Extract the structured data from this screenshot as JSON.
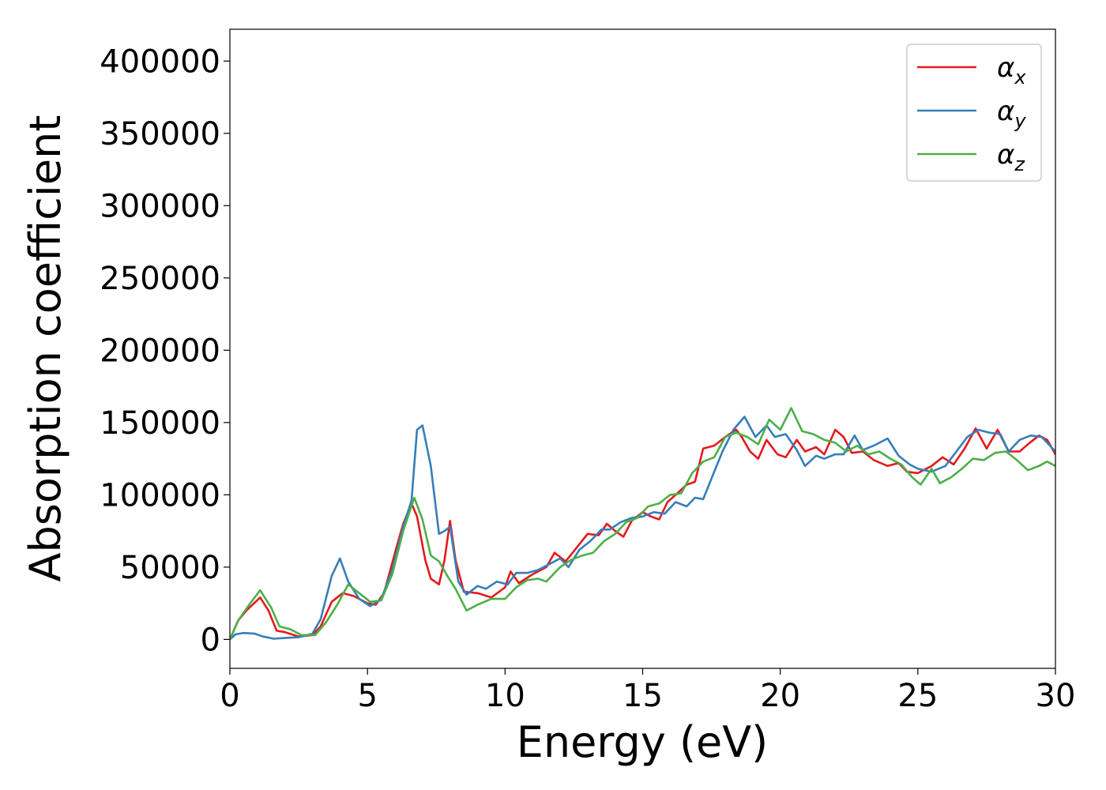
{
  "chart_data": {
    "type": "line",
    "title": "",
    "xlabel": "Energy (eV)",
    "ylabel": "Absorption coefficient",
    "xlim": [
      0,
      30
    ],
    "ylim": [
      -20000,
      422000
    ],
    "xticks": [
      0,
      5,
      10,
      15,
      20,
      25,
      30
    ],
    "yticks": [
      0,
      50000,
      100000,
      150000,
      200000,
      250000,
      300000,
      350000,
      400000
    ],
    "grid": false,
    "legend_position": "top-right",
    "series": [
      {
        "name": "αx",
        "base": "α",
        "sub": "x",
        "color": "#e41a1c",
        "points": [
          [
            0,
            0
          ],
          [
            0.3,
            13000
          ],
          [
            0.6,
            20000
          ],
          [
            1.1,
            29000
          ],
          [
            1.4,
            20000
          ],
          [
            1.7,
            6000
          ],
          [
            2.0,
            5000
          ],
          [
            2.5,
            2000
          ],
          [
            3.0,
            3000
          ],
          [
            3.3,
            9000
          ],
          [
            3.7,
            26000
          ],
          [
            4.1,
            32000
          ],
          [
            4.5,
            30000
          ],
          [
            5.0,
            25000
          ],
          [
            5.3,
            24000
          ],
          [
            5.6,
            32000
          ],
          [
            6.0,
            60000
          ],
          [
            6.3,
            80000
          ],
          [
            6.6,
            94000
          ],
          [
            6.8,
            85000
          ],
          [
            7.1,
            55000
          ],
          [
            7.3,
            42000
          ],
          [
            7.6,
            38000
          ],
          [
            7.8,
            55000
          ],
          [
            8.0,
            82000
          ],
          [
            8.2,
            55000
          ],
          [
            8.5,
            33000
          ],
          [
            9.0,
            32000
          ],
          [
            9.5,
            29000
          ],
          [
            10.0,
            36000
          ],
          [
            10.2,
            47000
          ],
          [
            10.5,
            39000
          ],
          [
            11.0,
            45000
          ],
          [
            11.5,
            50000
          ],
          [
            11.8,
            60000
          ],
          [
            12.2,
            54000
          ],
          [
            12.5,
            61000
          ],
          [
            13.0,
            73000
          ],
          [
            13.4,
            72000
          ],
          [
            13.7,
            80000
          ],
          [
            14.0,
            75000
          ],
          [
            14.3,
            71000
          ],
          [
            14.6,
            82000
          ],
          [
            15.0,
            88000
          ],
          [
            15.3,
            85000
          ],
          [
            15.6,
            83000
          ],
          [
            15.9,
            95000
          ],
          [
            16.2,
            100000
          ],
          [
            16.6,
            107000
          ],
          [
            16.9,
            109000
          ],
          [
            17.2,
            132000
          ],
          [
            17.6,
            134000
          ],
          [
            18.0,
            140000
          ],
          [
            18.4,
            145000
          ],
          [
            18.6,
            140000
          ],
          [
            18.9,
            130000
          ],
          [
            19.2,
            125000
          ],
          [
            19.5,
            138000
          ],
          [
            19.9,
            128000
          ],
          [
            20.2,
            126000
          ],
          [
            20.6,
            138000
          ],
          [
            20.9,
            130000
          ],
          [
            21.3,
            133000
          ],
          [
            21.6,
            128000
          ],
          [
            22.0,
            145000
          ],
          [
            22.3,
            140000
          ],
          [
            22.6,
            129000
          ],
          [
            23.0,
            130000
          ],
          [
            23.4,
            124000
          ],
          [
            23.9,
            120000
          ],
          [
            24.3,
            122000
          ],
          [
            24.6,
            116000
          ],
          [
            25.0,
            115000
          ],
          [
            25.5,
            120000
          ],
          [
            25.9,
            126000
          ],
          [
            26.3,
            121000
          ],
          [
            26.7,
            132000
          ],
          [
            27.1,
            146000
          ],
          [
            27.5,
            132000
          ],
          [
            27.9,
            145000
          ],
          [
            28.3,
            130000
          ],
          [
            28.7,
            130000
          ],
          [
            29.0,
            135000
          ],
          [
            29.4,
            141000
          ],
          [
            29.7,
            138000
          ],
          [
            30.0,
            128000
          ]
        ]
      },
      {
        "name": "αy",
        "base": "α",
        "sub": "y",
        "color": "#377eb8",
        "points": [
          [
            0,
            0
          ],
          [
            0.2,
            3500
          ],
          [
            0.5,
            4500
          ],
          [
            0.9,
            4000
          ],
          [
            1.2,
            2000
          ],
          [
            1.6,
            500
          ],
          [
            2.0,
            1000
          ],
          [
            2.5,
            1500
          ],
          [
            3.0,
            4000
          ],
          [
            3.3,
            14000
          ],
          [
            3.7,
            44000
          ],
          [
            4.0,
            56000
          ],
          [
            4.3,
            40000
          ],
          [
            4.7,
            28000
          ],
          [
            5.1,
            23000
          ],
          [
            5.5,
            28000
          ],
          [
            5.9,
            48000
          ],
          [
            6.3,
            78000
          ],
          [
            6.6,
            96000
          ],
          [
            6.8,
            145000
          ],
          [
            7.0,
            148000
          ],
          [
            7.3,
            120000
          ],
          [
            7.6,
            73000
          ],
          [
            7.8,
            75000
          ],
          [
            8.0,
            78000
          ],
          [
            8.3,
            40000
          ],
          [
            8.6,
            31000
          ],
          [
            9.0,
            37000
          ],
          [
            9.3,
            35000
          ],
          [
            9.7,
            40000
          ],
          [
            10.1,
            38000
          ],
          [
            10.4,
            46000
          ],
          [
            10.8,
            46000
          ],
          [
            11.2,
            48000
          ],
          [
            11.6,
            52000
          ],
          [
            12.0,
            56000
          ],
          [
            12.3,
            50000
          ],
          [
            12.7,
            62000
          ],
          [
            13.1,
            68000
          ],
          [
            13.5,
            76000
          ],
          [
            13.8,
            76000
          ],
          [
            14.2,
            81000
          ],
          [
            14.6,
            84000
          ],
          [
            15.0,
            85000
          ],
          [
            15.4,
            88000
          ],
          [
            15.8,
            87000
          ],
          [
            16.2,
            95000
          ],
          [
            16.6,
            92000
          ],
          [
            16.9,
            98000
          ],
          [
            17.2,
            97000
          ],
          [
            17.6,
            116000
          ],
          [
            17.9,
            130000
          ],
          [
            18.3,
            145000
          ],
          [
            18.7,
            154000
          ],
          [
            19.1,
            140000
          ],
          [
            19.5,
            148000
          ],
          [
            19.8,
            140000
          ],
          [
            20.2,
            142000
          ],
          [
            20.6,
            131000
          ],
          [
            20.9,
            120000
          ],
          [
            21.3,
            127000
          ],
          [
            21.6,
            125000
          ],
          [
            22.0,
            128000
          ],
          [
            22.3,
            128000
          ],
          [
            22.7,
            141000
          ],
          [
            23.0,
            131000
          ],
          [
            23.4,
            134000
          ],
          [
            23.9,
            139000
          ],
          [
            24.3,
            127000
          ],
          [
            24.7,
            121000
          ],
          [
            25.0,
            118000
          ],
          [
            25.5,
            116000
          ],
          [
            26.0,
            120000
          ],
          [
            26.4,
            130000
          ],
          [
            26.8,
            140000
          ],
          [
            27.2,
            145000
          ],
          [
            27.6,
            143000
          ],
          [
            28.0,
            142000
          ],
          [
            28.3,
            130000
          ],
          [
            28.7,
            138000
          ],
          [
            29.1,
            141000
          ],
          [
            29.5,
            140000
          ],
          [
            30.0,
            130000
          ]
        ]
      },
      {
        "name": "αz",
        "base": "α",
        "sub": "z",
        "color": "#4daf4a",
        "points": [
          [
            0,
            0
          ],
          [
            0.3,
            13000
          ],
          [
            0.7,
            24000
          ],
          [
            1.1,
            34000
          ],
          [
            1.5,
            22000
          ],
          [
            1.8,
            9000
          ],
          [
            2.2,
            7000
          ],
          [
            2.6,
            3000
          ],
          [
            3.1,
            3000
          ],
          [
            3.5,
            12000
          ],
          [
            3.9,
            24000
          ],
          [
            4.3,
            38000
          ],
          [
            4.7,
            32000
          ],
          [
            5.1,
            26000
          ],
          [
            5.5,
            27000
          ],
          [
            5.9,
            45000
          ],
          [
            6.3,
            75000
          ],
          [
            6.7,
            98000
          ],
          [
            7.0,
            83000
          ],
          [
            7.3,
            58000
          ],
          [
            7.6,
            54000
          ],
          [
            7.9,
            44000
          ],
          [
            8.2,
            35000
          ],
          [
            8.6,
            20000
          ],
          [
            9.0,
            24000
          ],
          [
            9.5,
            28000
          ],
          [
            10.0,
            28000
          ],
          [
            10.4,
            36000
          ],
          [
            10.8,
            41000
          ],
          [
            11.2,
            42000
          ],
          [
            11.5,
            40000
          ],
          [
            12.0,
            50000
          ],
          [
            12.4,
            55000
          ],
          [
            12.8,
            58000
          ],
          [
            13.2,
            60000
          ],
          [
            13.6,
            68000
          ],
          [
            14.0,
            73000
          ],
          [
            14.4,
            81000
          ],
          [
            14.8,
            84000
          ],
          [
            15.2,
            92000
          ],
          [
            15.6,
            94000
          ],
          [
            16.0,
            100000
          ],
          [
            16.4,
            101000
          ],
          [
            16.8,
            115000
          ],
          [
            17.2,
            123000
          ],
          [
            17.6,
            126000
          ],
          [
            18.0,
            140000
          ],
          [
            18.4,
            143000
          ],
          [
            18.8,
            140000
          ],
          [
            19.2,
            135000
          ],
          [
            19.6,
            152000
          ],
          [
            20.0,
            145000
          ],
          [
            20.4,
            160000
          ],
          [
            20.8,
            144000
          ],
          [
            21.2,
            142000
          ],
          [
            21.6,
            138000
          ],
          [
            22.0,
            136000
          ],
          [
            22.4,
            130000
          ],
          [
            22.8,
            134000
          ],
          [
            23.2,
            128000
          ],
          [
            23.6,
            130000
          ],
          [
            24.0,
            125000
          ],
          [
            24.4,
            121000
          ],
          [
            24.8,
            112000
          ],
          [
            25.1,
            107000
          ],
          [
            25.5,
            118000
          ],
          [
            25.8,
            108000
          ],
          [
            26.2,
            112000
          ],
          [
            26.6,
            118000
          ],
          [
            27.0,
            125000
          ],
          [
            27.4,
            124000
          ],
          [
            27.8,
            129000
          ],
          [
            28.2,
            130000
          ],
          [
            28.6,
            124000
          ],
          [
            29.0,
            117000
          ],
          [
            29.4,
            120000
          ],
          [
            29.7,
            123000
          ],
          [
            30.0,
            120000
          ]
        ]
      }
    ]
  }
}
